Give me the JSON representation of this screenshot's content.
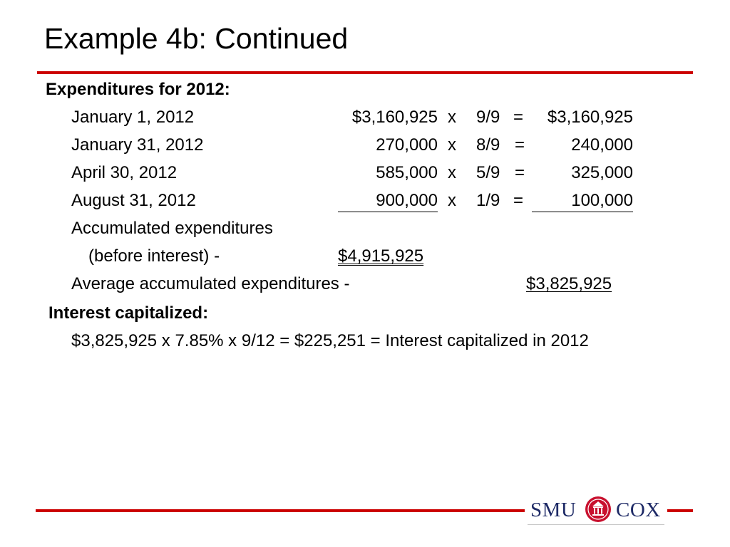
{
  "title": "Example 4b: Continued",
  "section1": {
    "heading": "Expenditures for 2012:",
    "rows": [
      {
        "date": "January 1, 2012",
        "amount": "$3,160,925",
        "x": "x",
        "fraction": "9/9",
        "eq": "=",
        "result": "$3,160,925"
      },
      {
        "date": "January 31, 2012",
        "amount": "270,000",
        "x": "x",
        "fraction": "8/9",
        "eq": "=",
        "result": "240,000"
      },
      {
        "date": "April 30, 2012",
        "amount": "585,000",
        "x": "x",
        "fraction": "5/9",
        "eq": "=",
        "result": "325,000"
      },
      {
        "date": "August 31, 2012",
        "amount": "900,000",
        "x": "x",
        "fraction": "1/9",
        "eq": "=",
        "result": "100,000"
      }
    ],
    "accumulated_label_1": "Accumulated expenditures",
    "accumulated_label_2": "(before interest) -",
    "accumulated_total": "$4,915,925",
    "average_label": "Average accumulated expenditures -",
    "average_total": "$3,825,925"
  },
  "section2": {
    "heading": "Interest capitalized:",
    "formula": "$3,825,925 x 7.85% x 9/12 = $225,251 = Interest capitalized in 2012"
  },
  "logo": {
    "left_text": "SMU",
    "right_text": "COX",
    "seal_color": "#c8102e",
    "text_color": "#1e2a66"
  },
  "colors": {
    "rule": "#cc0000"
  }
}
